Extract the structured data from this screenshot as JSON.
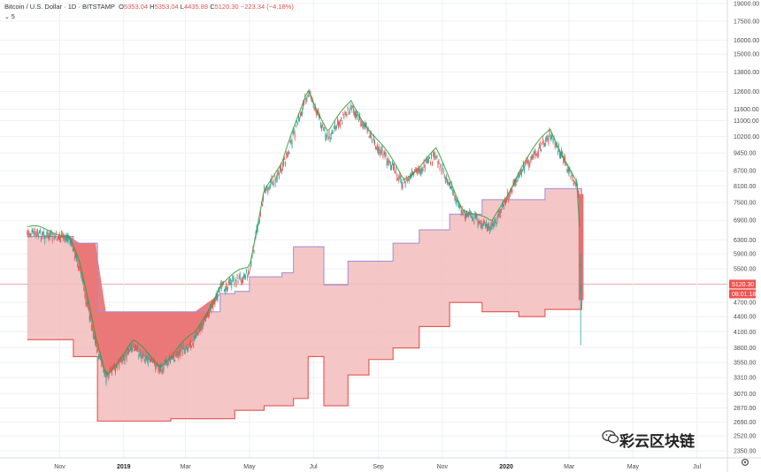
{
  "header": {
    "symbol": "Bitcoin / U.S. Dollar",
    "interval": "1D",
    "exchange": "BITSTAMP",
    "open_label": "O",
    "open": "5353.04",
    "high_label": "H",
    "high": "5353.04",
    "low_label": "L",
    "low": "4435.89",
    "close_label": "C",
    "close": "5120.30",
    "change": "−223.34 (−4.18%)",
    "indicator_toggle": "5"
  },
  "watermark": {
    "text": "彩云区块链",
    "icon": "wechat-icon"
  },
  "colors": {
    "band_fill": "#f2bcbc",
    "band_fill_dark": "#ea6f6f",
    "lower_line": "#e8534d",
    "upper_line": "#9b8fd6",
    "candle_up": "#26a69a",
    "candle_down": "#ef5350",
    "ma_line": "#3c9a3c",
    "price_line": "#e8a0a0"
  },
  "chart_data": {
    "type": "line",
    "title": "Bitcoin / U.S. Dollar · 1D · BITSTAMP",
    "xlabel": "",
    "ylabel": "",
    "x_tick_labels": [
      "Nov",
      "2019",
      "Mar",
      "May",
      "Jul",
      "Sep",
      "Nov",
      "2020",
      "Mar",
      "May",
      "Jul"
    ],
    "y_tick_labels": [
      "19000.00",
      "17500.00",
      "16000.00",
      "15000.00",
      "13800.00",
      "12600.00",
      "11600.00",
      "11000.00",
      "10200.00",
      "9450.00",
      "8700.00",
      "8100.00",
      "7500.00",
      "6900.00",
      "6300.00",
      "5900.00",
      "5500.00",
      "5120.30",
      "4700.00",
      "4400.00",
      "4100.00",
      "3800.00",
      "3550.00",
      "3310.00",
      "3070.00",
      "2870.00",
      "2690.00",
      "2520.00",
      "2350.00"
    ],
    "ylim": [
      2350,
      19000
    ],
    "y_scale": "log",
    "current_price": "5120.30",
    "countdown": "08:01:18",
    "series": [
      {
        "name": "Price",
        "x": [
          "2018-10-01",
          "2018-10-20",
          "2018-11-10",
          "2018-11-20",
          "2018-12-05",
          "2018-12-15",
          "2019-01-10",
          "2019-02-05",
          "2019-03-10",
          "2019-04-03",
          "2019-05-01",
          "2019-05-15",
          "2019-06-01",
          "2019-06-26",
          "2019-07-15",
          "2019-08-06",
          "2019-09-01",
          "2019-09-25",
          "2019-10-26",
          "2019-11-20",
          "2019-12-18",
          "2020-01-14",
          "2020-02-12",
          "2020-03-01",
          "2020-03-10",
          "2020-03-12",
          "2020-03-13"
        ],
        "values": [
          6500,
          6400,
          6350,
          5500,
          3900,
          3300,
          3800,
          3450,
          3950,
          5000,
          5400,
          7900,
          8700,
          12600,
          10100,
          11800,
          9700,
          8200,
          9300,
          7200,
          6600,
          8600,
          10300,
          8700,
          7900,
          4900,
          5120
        ]
      },
      {
        "name": "Upper band",
        "x": [
          "2018-10-01",
          "2018-10-24",
          "2018-11-14",
          "2018-12-07",
          "2019-01-18",
          "2019-02-15",
          "2019-03-22",
          "2019-04-03",
          "2019-04-17",
          "2019-05-01",
          "2019-05-15",
          "2019-06-01",
          "2019-06-12",
          "2019-06-26",
          "2019-07-11",
          "2019-08-03",
          "2019-08-23",
          "2019-09-15",
          "2019-10-10",
          "2019-11-08",
          "2019-12-09",
          "2020-01-13",
          "2020-02-07",
          "2020-03-13"
        ],
        "values": [
          6400,
          6400,
          6200,
          4500,
          4500,
          4500,
          4500,
          4900,
          4950,
          5300,
          5300,
          5400,
          6100,
          6100,
          5100,
          5700,
          5700,
          6200,
          6600,
          7100,
          7600,
          7600,
          8000,
          7800
        ]
      },
      {
        "name": "Lower band",
        "x": [
          "2018-10-01",
          "2018-10-24",
          "2018-11-14",
          "2018-12-07",
          "2019-01-18",
          "2019-02-15",
          "2019-03-22",
          "2019-04-17",
          "2019-05-15",
          "2019-06-12",
          "2019-06-26",
          "2019-07-11",
          "2019-08-03",
          "2019-08-23",
          "2019-09-15",
          "2019-10-10",
          "2019-11-08",
          "2019-12-09",
          "2020-01-13",
          "2020-02-07",
          "2020-03-13"
        ],
        "values": [
          3950,
          3950,
          3650,
          2700,
          2700,
          2730,
          2730,
          2840,
          2900,
          3000,
          3650,
          2900,
          3350,
          3600,
          3800,
          4200,
          4700,
          4500,
          4400,
          4550,
          4750
        ]
      }
    ]
  }
}
